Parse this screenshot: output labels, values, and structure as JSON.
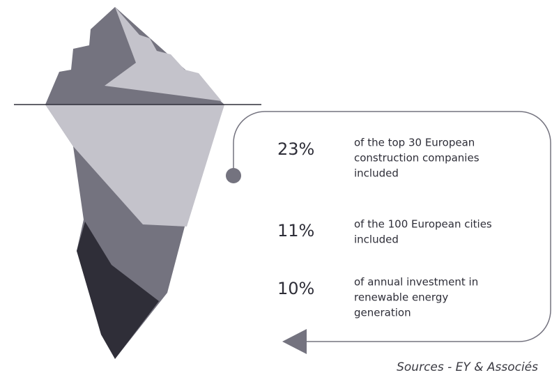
{
  "stats": [
    {
      "value": "23%",
      "lines": [
        "of the top 30 European",
        "construction companies",
        "included"
      ]
    },
    {
      "value": "11%",
      "lines": [
        "of the 100 European cities",
        "included"
      ]
    },
    {
      "value": "10%",
      "lines": [
        "of annual investment in",
        "renewable energy",
        "generation"
      ]
    }
  ],
  "source": "Sources - EY & Associés"
}
